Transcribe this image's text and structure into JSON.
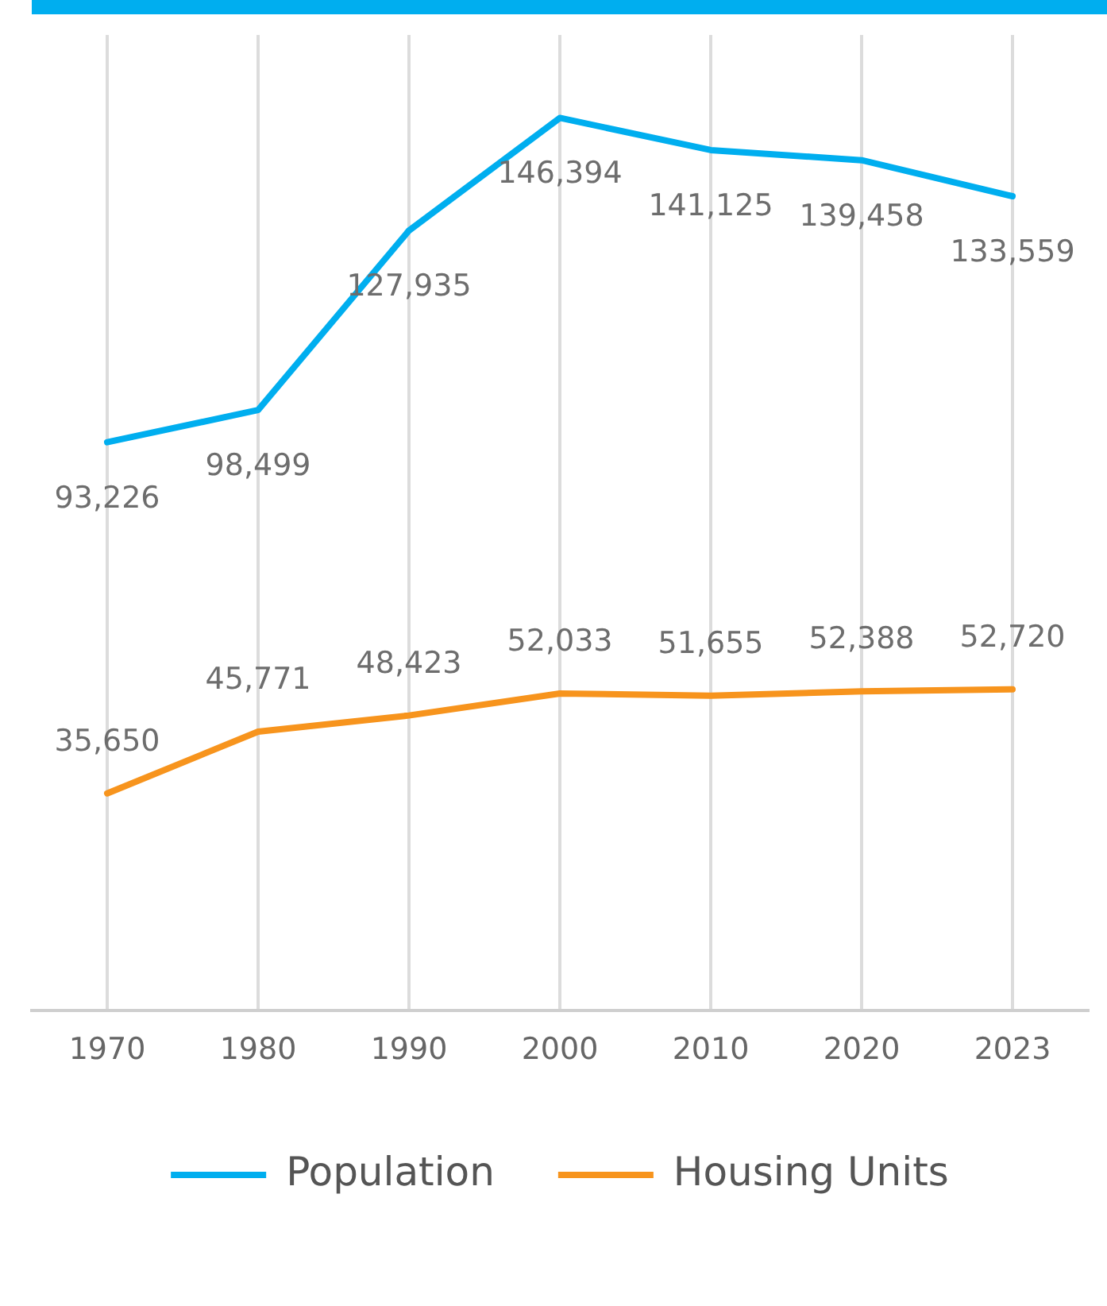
{
  "chart_data": {
    "type": "line",
    "categories": [
      "1970",
      "1980",
      "1990",
      "2000",
      "2010",
      "2020",
      "2023"
    ],
    "series": [
      {
        "name": "Population",
        "color": "#00aeef",
        "values": [
          93226,
          98499,
          127935,
          146394,
          141125,
          139458,
          133559
        ],
        "value_labels": [
          "93,226",
          "98,499",
          "127,935",
          "146,394",
          "141,125",
          "139,458",
          "133,559"
        ]
      },
      {
        "name": "Housing Units",
        "color": "#f7941d",
        "values": [
          35650,
          45771,
          48423,
          52033,
          51655,
          52388,
          52720
        ],
        "value_labels": [
          "35,650",
          "45,771",
          "48,423",
          "52,033",
          "51,655",
          "52,388",
          "52,720"
        ]
      }
    ],
    "tick_labels": "x",
    "grid": "x",
    "legend": "bottom",
    "marker": "none"
  }
}
